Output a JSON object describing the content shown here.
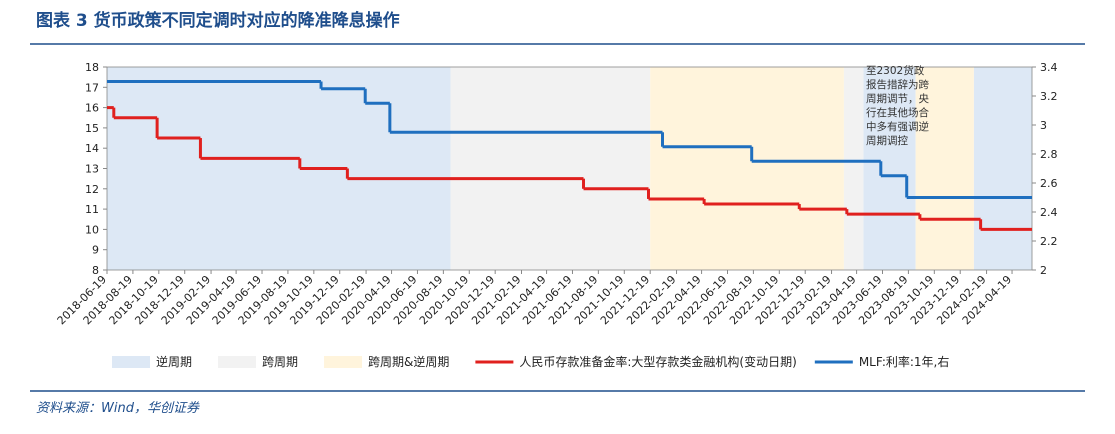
{
  "chart_data": {
    "type": "step-line",
    "title": "图表 3   货币政策不同定调时对应的降准降息操作",
    "source": "资料来源：Wind，华创证券",
    "annotation": "至2302货政报告措辞为跨周期调节，央行在其他场合中多有强调逆周期调控",
    "xlim": [
      "2018-06-19",
      "2024-06-05"
    ],
    "xticks": [
      "2018-06-19",
      "2018-08-19",
      "2018-10-19",
      "2018-12-19",
      "2019-02-19",
      "2019-04-19",
      "2019-06-19",
      "2019-08-19",
      "2019-10-19",
      "2019-12-19",
      "2020-02-19",
      "2020-04-19",
      "2020-06-19",
      "2020-08-19",
      "2020-10-19",
      "2020-12-19",
      "2021-02-19",
      "2021-04-19",
      "2021-06-19",
      "2021-08-19",
      "2021-10-19",
      "2021-12-19",
      "2022-02-19",
      "2022-04-19",
      "2022-06-19",
      "2022-08-19",
      "2022-10-19",
      "2022-12-19",
      "2023-02-19",
      "2023-04-19",
      "2023-06-19",
      "2023-08-19",
      "2023-10-19",
      "2023-12-19",
      "2024-02-19",
      "2024-04-19"
    ],
    "ylim": [
      8,
      18
    ],
    "yticks": [
      8,
      9,
      10,
      11,
      12,
      13,
      14,
      15,
      16,
      17,
      18
    ],
    "y2lim": [
      2,
      3.4
    ],
    "y2ticks": [
      2,
      2.2,
      2.4,
      2.6,
      2.8,
      3,
      3.2,
      3.4
    ],
    "bands": [
      {
        "name": "逆周期",
        "color": "#dde8f5",
        "ranges": [
          [
            "2018-06-19",
            "2020-09-05"
          ],
          [
            "2023-05-05",
            "2023-09-05"
          ],
          [
            "2024-01-20",
            "2024-06-05"
          ]
        ]
      },
      {
        "name": "跨周期",
        "color": "#f2f2f2",
        "ranges": [
          [
            "2020-09-05",
            "2021-12-19"
          ],
          [
            "2023-03-20",
            "2023-05-05"
          ]
        ]
      },
      {
        "name": "跨周期&逆周期",
        "color": "#fff4dc",
        "ranges": [
          [
            "2021-12-19",
            "2023-03-20"
          ],
          [
            "2023-09-05",
            "2024-01-20"
          ]
        ]
      }
    ],
    "series": [
      {
        "name": "人民币存款准备金率:大型存款类金融机构(变动日期)",
        "color": "#e0201e",
        "axis": "y",
        "x": [
          "2018-06-19",
          "2018-07-05",
          "2018-10-15",
          "2019-01-25",
          "2019-09-16",
          "2020-01-06",
          "2021-07-15",
          "2021-12-15",
          "2022-04-25",
          "2022-12-05",
          "2023-03-27",
          "2023-09-15",
          "2024-02-05"
        ],
        "values": [
          16,
          15.5,
          14.5,
          13.5,
          13,
          12.5,
          12,
          11.5,
          11.25,
          11,
          10.75,
          10.5,
          10
        ]
      },
      {
        "name": "MLF:利率:1年,右",
        "color": "#1f6fbf",
        "axis": "y2",
        "x": [
          "2018-06-19",
          "2019-11-05",
          "2020-02-17",
          "2020-04-15",
          "2022-01-17",
          "2022-08-15",
          "2023-06-15",
          "2023-08-15"
        ],
        "values": [
          3.3,
          3.25,
          3.15,
          2.95,
          2.85,
          2.75,
          2.65,
          2.5
        ]
      }
    ]
  }
}
